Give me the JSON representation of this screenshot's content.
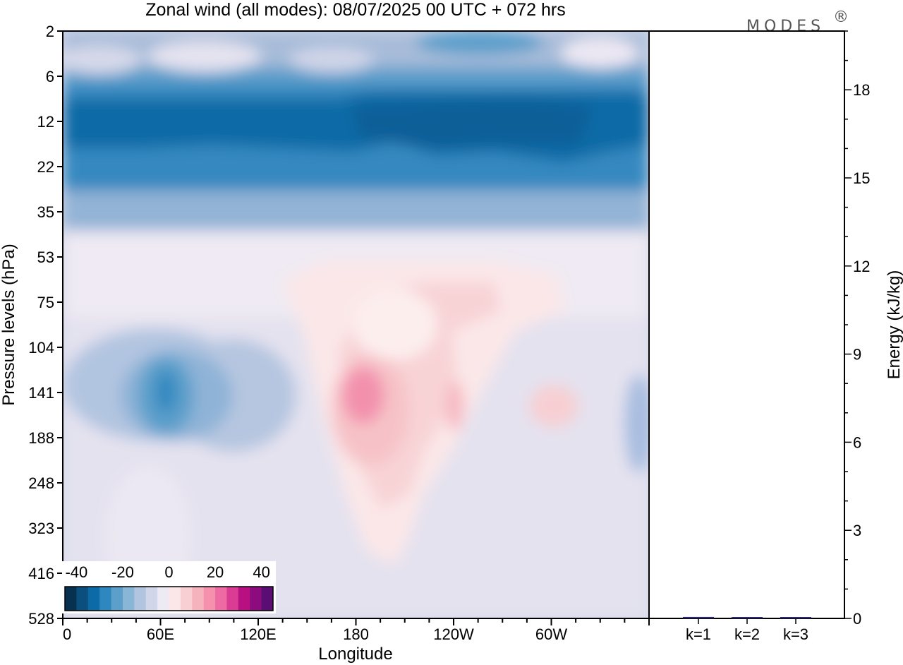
{
  "title": "Zonal wind (all modes):  08/07/2025  00 UTC  + 072 hrs",
  "logo": "MODES",
  "logo_mark": "®",
  "chart_data": [
    {
      "type": "heatmap",
      "title": "Zonal wind (all modes):  08/07/2025  00 UTC  + 072 hrs",
      "xlabel": "Longitude",
      "ylabel": "Pressure levels (hPa)",
      "x_ticks": [
        "0",
        "60E",
        "120E",
        "180",
        "120W",
        "60W"
      ],
      "x_tick_degrees": [
        0,
        60,
        120,
        180,
        240,
        300
      ],
      "xlim": [
        0,
        360
      ],
      "y_ticks": [
        "2",
        "6",
        "12",
        "22",
        "35",
        "53",
        "75",
        "104",
        "141",
        "188",
        "248",
        "323",
        "416",
        "528"
      ],
      "y_scale": "ordinal pressure levels, top 2 to bottom 528",
      "colorbar": {
        "tick_labels": [
          "-40",
          "-20",
          "0",
          "20",
          "40"
        ],
        "levels": [
          -45,
          -40,
          -35,
          -30,
          -25,
          -20,
          -15,
          -10,
          -5,
          0,
          5,
          10,
          15,
          20,
          25,
          30,
          35,
          40,
          45
        ],
        "colors": [
          "#08304f",
          "#0b4f7e",
          "#0c6aa6",
          "#2f87bf",
          "#5c9fcb",
          "#89b6d6",
          "#b2c5e0",
          "#d1d6e9",
          "#eeeaf3",
          "#fbe7e8",
          "#f8cfd2",
          "#f5b3bd",
          "#f591ad",
          "#ee6aa3",
          "#da3c94",
          "#b81081",
          "#8c0c7d",
          "#5a0d72"
        ],
        "placement": "bottom-left inside plot"
      },
      "field_notes": [
        {
          "levels": "6-35",
          "longitudes": "all",
          "value": -30
        },
        {
          "levels": "12-22",
          "longitudes": "150E-150W",
          "value": -35
        },
        {
          "levels": "104-188",
          "longitudes": "55E-70E",
          "value": -32
        },
        {
          "levels": "104-248",
          "longitudes": "165E-200E",
          "value": 15
        },
        {
          "levels": "53-400",
          "longitudes": "150E-150W",
          "value": 5
        }
      ]
    },
    {
      "type": "bar",
      "ylabel": "Energy (kJ/kg)",
      "categories": [
        "k=1",
        "k=2",
        "k=3"
      ],
      "values": [
        0.05,
        0.03,
        0.03
      ],
      "ylim": [
        0,
        20
      ],
      "y_ticks": [
        "0",
        "3",
        "6",
        "9",
        "12",
        "15",
        "18"
      ],
      "bar_color": "#2b2b6e"
    }
  ]
}
